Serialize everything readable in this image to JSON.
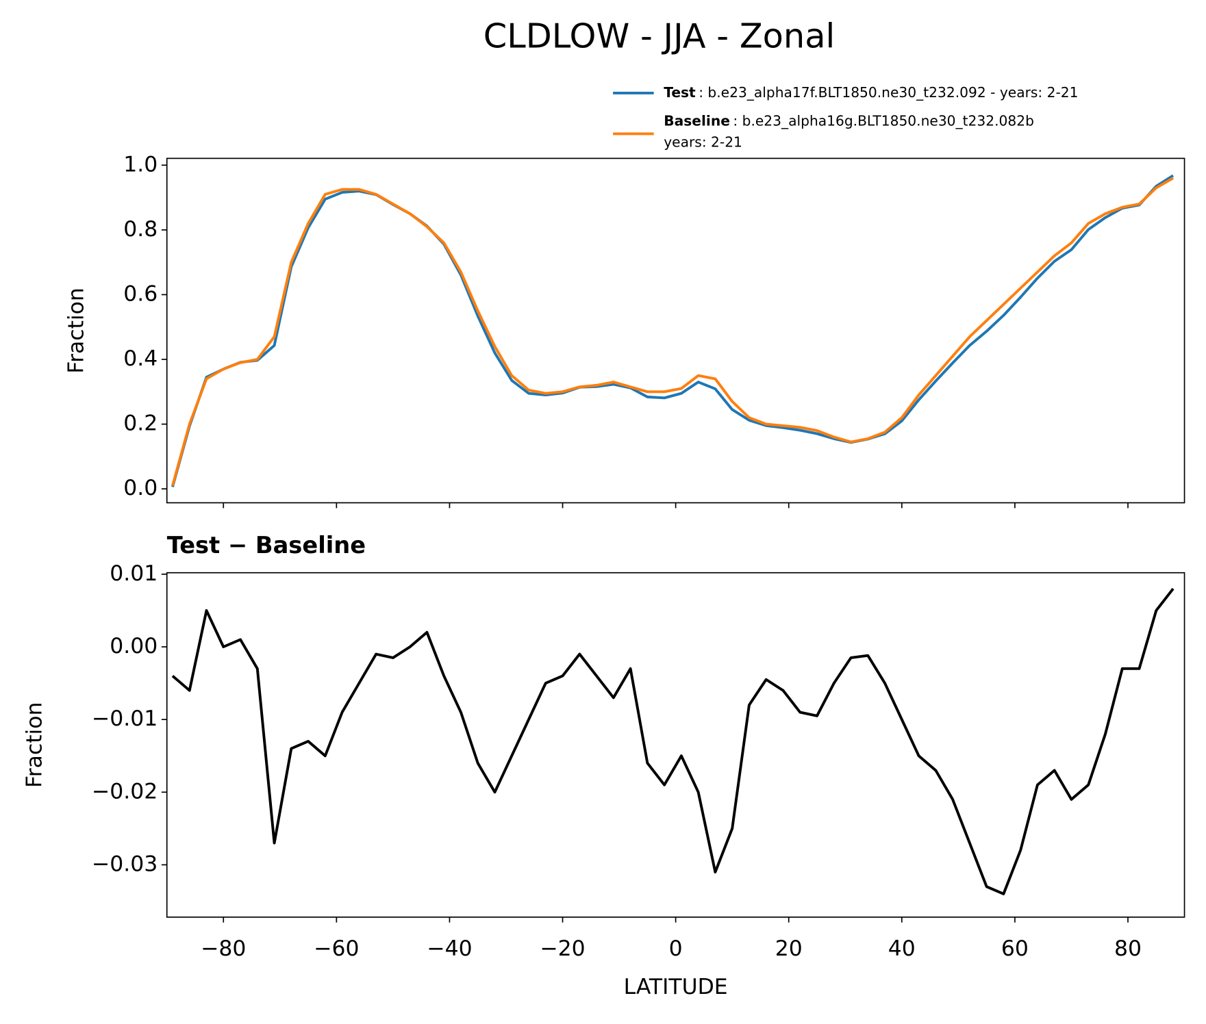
{
  "title": "CLDLOW - JJA - Zonal",
  "chart_data": [
    {
      "type": "line",
      "ylabel": "Fraction",
      "x": [
        -89,
        -86,
        -83,
        -80,
        -77,
        -74,
        -71,
        -68,
        -65,
        -62,
        -59,
        -56,
        -53,
        -50,
        -47,
        -44,
        -41,
        -38,
        -35,
        -32,
        -29,
        -26,
        -23,
        -20,
        -17,
        -14,
        -11,
        -8,
        -5,
        -2,
        1,
        4,
        7,
        10,
        13,
        16,
        19,
        22,
        25,
        28,
        31,
        34,
        37,
        40,
        43,
        46,
        49,
        52,
        55,
        58,
        61,
        64,
        67,
        70,
        73,
        76,
        79,
        82,
        85,
        88
      ],
      "series": [
        {
          "name": "Test",
          "description": [
            ": b.e23_alpha17f.BLT1850.ne30_t232.092 - years: 2-21"
          ],
          "color": "#1f77b4",
          "values": [
            0.006,
            0.194,
            0.345,
            0.37,
            0.391,
            0.397,
            0.443,
            0.686,
            0.807,
            0.895,
            0.916,
            0.92,
            0.909,
            0.8785,
            0.85,
            0.812,
            0.756,
            0.661,
            0.534,
            0.42,
            0.335,
            0.295,
            0.29,
            0.296,
            0.314,
            0.316,
            0.323,
            0.312,
            0.284,
            0.281,
            0.295,
            0.33,
            0.309,
            0.245,
            0.212,
            0.1955,
            0.189,
            0.181,
            0.1705,
            0.155,
            0.1435,
            0.1538,
            0.17,
            0.21,
            0.275,
            0.333,
            0.389,
            0.443,
            0.487,
            0.536,
            0.592,
            0.651,
            0.703,
            0.739,
            0.801,
            0.838,
            0.867,
            0.877,
            0.935,
            0.968
          ]
        },
        {
          "name": "Baseline",
          "description": [
            ": b.e23_alpha16g.BLT1850.ne30_t232.082b",
            "years: 2-21"
          ],
          "color": "#ff7f0e",
          "values": [
            0.01,
            0.2,
            0.34,
            0.37,
            0.39,
            0.4,
            0.47,
            0.7,
            0.82,
            0.91,
            0.925,
            0.925,
            0.91,
            0.88,
            0.85,
            0.81,
            0.76,
            0.67,
            0.55,
            0.44,
            0.35,
            0.305,
            0.295,
            0.3,
            0.315,
            0.32,
            0.33,
            0.315,
            0.3,
            0.3,
            0.31,
            0.35,
            0.34,
            0.27,
            0.22,
            0.2,
            0.195,
            0.19,
            0.18,
            0.16,
            0.145,
            0.155,
            0.175,
            0.22,
            0.29,
            0.35,
            0.41,
            0.47,
            0.52,
            0.57,
            0.62,
            0.67,
            0.72,
            0.76,
            0.82,
            0.85,
            0.87,
            0.88,
            0.93,
            0.96
          ]
        }
      ],
      "xlim": [
        -90,
        90
      ],
      "ylim": [
        -0.043,
        1.021
      ],
      "xticks": [
        -80,
        -60,
        -40,
        -20,
        0,
        20,
        40,
        60,
        80
      ],
      "yticks": [
        {
          "value": 0,
          "label": "0.0"
        },
        0.2,
        0.4,
        0.6,
        0.8,
        {
          "value": 1,
          "label": "1.0"
        }
      ]
    },
    {
      "type": "line",
      "title": "Test − Baseline",
      "xlabel": "LATITUDE",
      "ylabel": "Fraction",
      "x": [
        -89,
        -86,
        -83,
        -80,
        -77,
        -74,
        -71,
        -68,
        -65,
        -62,
        -59,
        -56,
        -53,
        -50,
        -47,
        -44,
        -41,
        -38,
        -35,
        -32,
        -29,
        -26,
        -23,
        -20,
        -17,
        -14,
        -11,
        -8,
        -5,
        -2,
        1,
        4,
        7,
        10,
        13,
        16,
        19,
        22,
        25,
        28,
        31,
        34,
        37,
        40,
        43,
        46,
        49,
        52,
        55,
        58,
        61,
        64,
        67,
        70,
        73,
        76,
        79,
        82,
        85,
        88
      ],
      "series": [
        {
          "color": "#000000",
          "values": [
            -0.004,
            -0.006,
            0.005,
            0,
            0.001,
            -0.003,
            -0.027,
            -0.014,
            -0.013,
            -0.015,
            -0.009,
            -0.005,
            -0.001,
            -0.0015,
            0,
            0.002,
            -0.004,
            -0.009,
            -0.016,
            -0.02,
            -0.015,
            -0.01,
            -0.005,
            -0.004,
            -0.001,
            -0.004,
            -0.007,
            -0.003,
            -0.016,
            -0.019,
            -0.015,
            -0.02,
            -0.031,
            -0.025,
            -0.008,
            -0.0045,
            -0.006,
            -0.009,
            -0.0095,
            -0.005,
            -0.0015,
            -0.0012,
            -0.005,
            -0.01,
            -0.015,
            -0.017,
            -0.021,
            -0.027,
            -0.033,
            -0.034,
            -0.028,
            -0.019,
            -0.017,
            -0.021,
            -0.019,
            -0.012,
            -0.003,
            -0.003,
            0.005,
            0.008
          ]
        }
      ],
      "xlim": [
        -90,
        90
      ],
      "ylim": [
        -0.0372,
        0.0102
      ],
      "xticks": [
        {
          "value": -80,
          "label": "−80"
        },
        {
          "value": -60,
          "label": "−60"
        },
        {
          "value": -40,
          "label": "−40"
        },
        {
          "value": -20,
          "label": "−20"
        },
        0,
        20,
        40,
        60,
        80
      ],
      "yticks": [
        {
          "value": 0.01,
          "label": "0.01"
        },
        {
          "value": 0,
          "label": "0.00"
        },
        {
          "value": -0.01,
          "label": "−0.01"
        },
        {
          "value": -0.02,
          "label": "−0.02"
        },
        {
          "value": -0.03,
          "label": "−0.03"
        }
      ]
    }
  ]
}
